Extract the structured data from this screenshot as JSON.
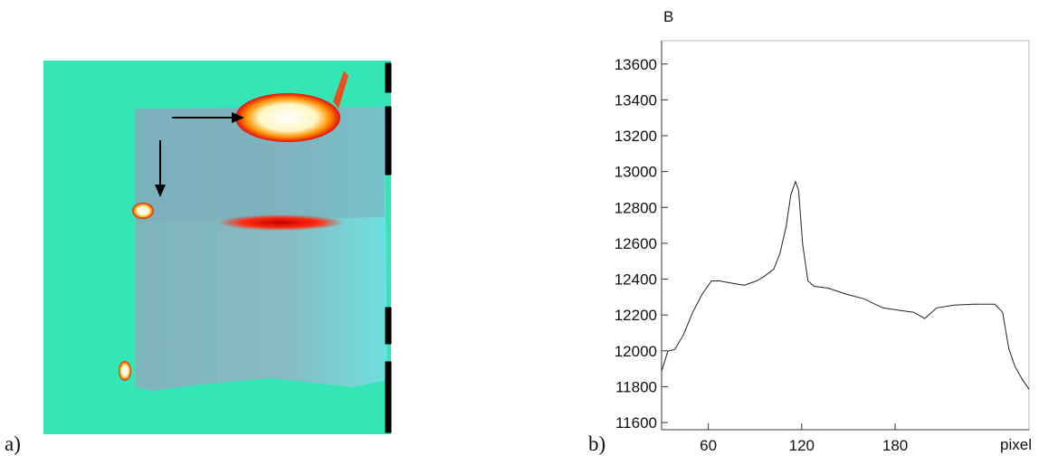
{
  "panel_labels": [
    "a)",
    "b)"
  ],
  "chart_data": {
    "type": "line",
    "y_label": "B",
    "x_label": "pixel",
    "x": [
      30,
      34,
      38.5,
      44,
      50,
      56,
      62,
      67,
      76,
      83,
      91,
      96,
      102,
      106,
      110,
      113,
      116,
      118,
      120.6,
      124,
      128,
      137,
      149,
      160,
      172,
      183.5,
      192,
      199,
      206.7,
      218,
      230,
      244,
      249,
      253,
      257,
      262,
      266
    ],
    "series": [
      {
        "color": "#222222",
        "values": [
          11887,
          11998,
          12008,
          12089,
          12215,
          12315,
          12390,
          12390,
          12376,
          12366,
          12390,
          12416,
          12456,
          12542,
          12693,
          12870,
          12945,
          12895,
          12592,
          12390,
          12360,
          12350,
          12315,
          12290,
          12240,
          12225,
          12215,
          12180,
          12240,
          12255,
          12260,
          12260,
          12215,
          12013,
          11912,
          11836,
          11786
        ]
      }
    ],
    "xlim": [
      30,
      266
    ],
    "xticks": [
      60,
      120,
      180
    ],
    "ylim": [
      11560,
      13730
    ],
    "yticks": [
      11600,
      11800,
      12000,
      12200,
      12400,
      12600,
      12800,
      13000,
      13200,
      13400,
      13600
    ]
  }
}
